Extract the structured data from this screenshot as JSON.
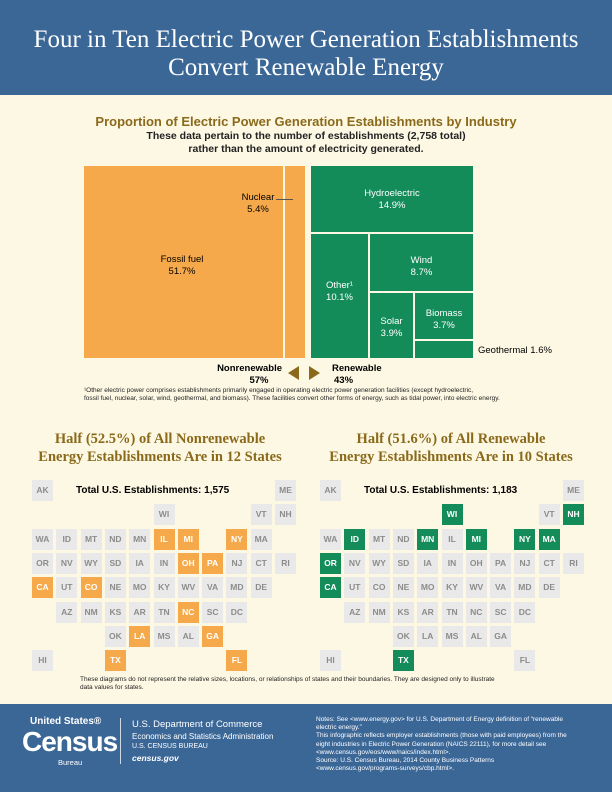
{
  "header": {
    "title_line1": "Four in Ten Electric Power Generation Establishments",
    "title_line2": "Convert Renewable Energy"
  },
  "treemap_section": {
    "title": "Proportion of Electric Power Generation Establishments by Industry",
    "subtitle_line1": "These data pertain to the number of establishments (2,758 total)",
    "subtitle_line2": "rather than the amount of electricity generated.",
    "nonrenewable_label": "Nonrenewable",
    "nonrenewable_pct": "57%",
    "renewable_label": "Renewable",
    "renewable_pct": "43%",
    "footnote_line1": "¹Other electric power comprises establishments primarily engaged in operating electric power generation facilities (except hydroelectric,",
    "footnote_line2": "fossil fuel, nuclear, solar, wind, geothermal, and biomass). These facilities convert other forms of energy, such as tidal power, into electric energy."
  },
  "chart_data": {
    "type": "treemap",
    "groups": [
      {
        "name": "Nonrenewable",
        "percent": 57,
        "items": [
          {
            "name": "Fossil fuel",
            "percent": 51.7
          },
          {
            "name": "Nuclear",
            "percent": 5.4
          }
        ]
      },
      {
        "name": "Renewable",
        "percent": 43,
        "items": [
          {
            "name": "Hydroelectric",
            "percent": 14.9
          },
          {
            "name": "Other¹",
            "percent": 10.1
          },
          {
            "name": "Wind",
            "percent": 8.7
          },
          {
            "name": "Solar",
            "percent": 3.9
          },
          {
            "name": "Biomass",
            "percent": 3.7
          },
          {
            "name": "Geothermal",
            "percent": 1.6
          }
        ]
      }
    ],
    "labels": {
      "fossil": {
        "name": "Fossil fuel",
        "pct": "51.7%"
      },
      "nuclear": {
        "name": "Nuclear",
        "pct": "5.4%"
      },
      "hydro": {
        "name": "Hydroelectric",
        "pct": "14.9%"
      },
      "other": {
        "name": "Other¹",
        "pct": "10.1%"
      },
      "wind": {
        "name": "Wind",
        "pct": "8.7%"
      },
      "solar": {
        "name": "Solar",
        "pct": "3.9%"
      },
      "biomass": {
        "name": "Biomass",
        "pct": "3.7%"
      },
      "geothermal": "Geothermal 1.6%"
    },
    "colors": {
      "nonrenewable": "#f6a94a",
      "renewable": "#138c5a"
    }
  },
  "maps": {
    "nonrenewable": {
      "title_line1": "Half (52.5%) of All Nonrenewable",
      "title_line2": "Energy Establishments Are in 12 States",
      "total": "Total U.S. Establishments: 1,575",
      "highlighted": [
        "CA",
        "CO",
        "IL",
        "MI",
        "NY",
        "OH",
        "PA",
        "NC",
        "LA",
        "GA",
        "TX",
        "FL"
      ],
      "highlight_color": "#f6a94a"
    },
    "renewable": {
      "title_line1": "Half (51.6%) of All Renewable",
      "title_line2": "Energy Establishments Are in 10 States",
      "total": "Total U.S. Establishments: 1,183",
      "highlighted": [
        "WI",
        "NH",
        "ID",
        "MN",
        "MI",
        "NY",
        "MA",
        "OR",
        "CA",
        "TX"
      ],
      "highlight_color": "#138c5a"
    },
    "states": [
      {
        "s": "AK",
        "r": 0,
        "c": 0
      },
      {
        "s": "ME",
        "r": 0,
        "c": 10
      },
      {
        "s": "WI",
        "r": 1,
        "c": 5
      },
      {
        "s": "VT",
        "r": 1,
        "c": 9
      },
      {
        "s": "NH",
        "r": 1,
        "c": 10
      },
      {
        "s": "WA",
        "r": 2,
        "c": 0
      },
      {
        "s": "ID",
        "r": 2,
        "c": 1
      },
      {
        "s": "MT",
        "r": 2,
        "c": 2
      },
      {
        "s": "ND",
        "r": 2,
        "c": 3
      },
      {
        "s": "MN",
        "r": 2,
        "c": 4
      },
      {
        "s": "IL",
        "r": 2,
        "c": 5
      },
      {
        "s": "MI",
        "r": 2,
        "c": 6
      },
      {
        "s": "NY",
        "r": 2,
        "c": 8
      },
      {
        "s": "MA",
        "r": 2,
        "c": 9
      },
      {
        "s": "OR",
        "r": 3,
        "c": 0
      },
      {
        "s": "NV",
        "r": 3,
        "c": 1
      },
      {
        "s": "WY",
        "r": 3,
        "c": 2
      },
      {
        "s": "SD",
        "r": 3,
        "c": 3
      },
      {
        "s": "IA",
        "r": 3,
        "c": 4
      },
      {
        "s": "IN",
        "r": 3,
        "c": 5
      },
      {
        "s": "OH",
        "r": 3,
        "c": 6
      },
      {
        "s": "PA",
        "r": 3,
        "c": 7
      },
      {
        "s": "NJ",
        "r": 3,
        "c": 8
      },
      {
        "s": "CT",
        "r": 3,
        "c": 9
      },
      {
        "s": "RI",
        "r": 3,
        "c": 10
      },
      {
        "s": "CA",
        "r": 4,
        "c": 0
      },
      {
        "s": "UT",
        "r": 4,
        "c": 1
      },
      {
        "s": "CO",
        "r": 4,
        "c": 2
      },
      {
        "s": "NE",
        "r": 4,
        "c": 3
      },
      {
        "s": "MO",
        "r": 4,
        "c": 4
      },
      {
        "s": "KY",
        "r": 4,
        "c": 5
      },
      {
        "s": "WV",
        "r": 4,
        "c": 6
      },
      {
        "s": "VA",
        "r": 4,
        "c": 7
      },
      {
        "s": "MD",
        "r": 4,
        "c": 8
      },
      {
        "s": "DE",
        "r": 4,
        "c": 9
      },
      {
        "s": "AZ",
        "r": 5,
        "c": 1
      },
      {
        "s": "NM",
        "r": 5,
        "c": 2
      },
      {
        "s": "KS",
        "r": 5,
        "c": 3
      },
      {
        "s": "AR",
        "r": 5,
        "c": 4
      },
      {
        "s": "TN",
        "r": 5,
        "c": 5
      },
      {
        "s": "NC",
        "r": 5,
        "c": 6
      },
      {
        "s": "SC",
        "r": 5,
        "c": 7
      },
      {
        "s": "DC",
        "r": 5,
        "c": 8
      },
      {
        "s": "OK",
        "r": 6,
        "c": 3
      },
      {
        "s": "LA",
        "r": 6,
        "c": 4
      },
      {
        "s": "MS",
        "r": 6,
        "c": 5
      },
      {
        "s": "AL",
        "r": 6,
        "c": 6
      },
      {
        "s": "GA",
        "r": 6,
        "c": 7
      },
      {
        "s": "HI",
        "r": 7,
        "c": 0
      },
      {
        "s": "TX",
        "r": 7,
        "c": 3
      },
      {
        "s": "FL",
        "r": 7,
        "c": 8
      }
    ],
    "disclaimer_line1": "These diagrams do not represent the relative sizes, locations, or relationships of states and their boundaries. They are designed only to illustrate",
    "disclaimer_line2": "data values for states."
  },
  "footer": {
    "logo_top": "United States®",
    "logo_main": "Census",
    "logo_bureau": "Bureau",
    "dept": "U.S. Department of Commerce",
    "admin": "Economics and Statistics Administration",
    "bureau": "U.S. CENSUS BUREAU",
    "site": "census.gov",
    "notes": [
      "Notes: See <www.energy.gov> for U.S. Department of Energy definition of “renewable",
      "electric energy.”",
      "This infographic reflects employer establishments (those with paid employees) from the",
      "eight industries in Electric Power Generation (NAICS 22111), for more detail see",
      "<www.census.gov/eos/www/naics/index.html>.",
      "Source: U.S. Census Bureau, 2014 County Business Patterns",
      "<www.census.gov/programs-surveys/cbp.html>."
    ]
  }
}
